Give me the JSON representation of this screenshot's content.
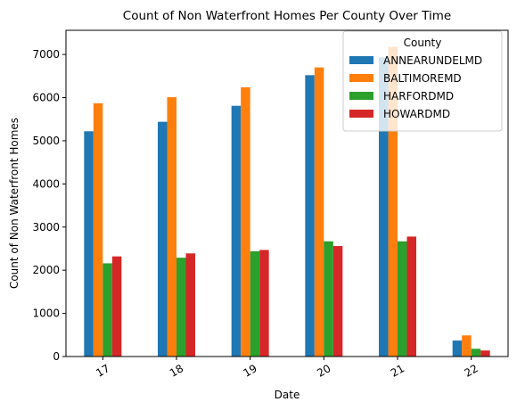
{
  "chart_data": {
    "type": "bar",
    "title": "Count of Non Waterfront Homes Per County Over Time",
    "xlabel": "Date",
    "ylabel": "Count of Non Waterfront Homes",
    "categories": [
      "17",
      "18",
      "19",
      "20",
      "21",
      "22"
    ],
    "ylim": [
      0,
      7560
    ],
    "yticks": [
      0,
      1000,
      2000,
      3000,
      4000,
      5000,
      6000,
      7000
    ],
    "grid": false,
    "legend": {
      "title": "County",
      "placement": "top-right"
    },
    "series": [
      {
        "name": "ANNEARUNDELMD",
        "color": "#1f77b4",
        "values": [
          5220,
          5440,
          5810,
          6520,
          6930,
          370
        ]
      },
      {
        "name": "BALTIMOREMD",
        "color": "#ff7f0e",
        "values": [
          5870,
          6010,
          6240,
          6700,
          7180,
          490
        ]
      },
      {
        "name": "HARFORDMD",
        "color": "#2ca02c",
        "values": [
          2160,
          2290,
          2440,
          2670,
          2670,
          180
        ]
      },
      {
        "name": "HOWARDMD",
        "color": "#d62728",
        "values": [
          2320,
          2390,
          2470,
          2560,
          2780,
          140
        ]
      }
    ]
  }
}
